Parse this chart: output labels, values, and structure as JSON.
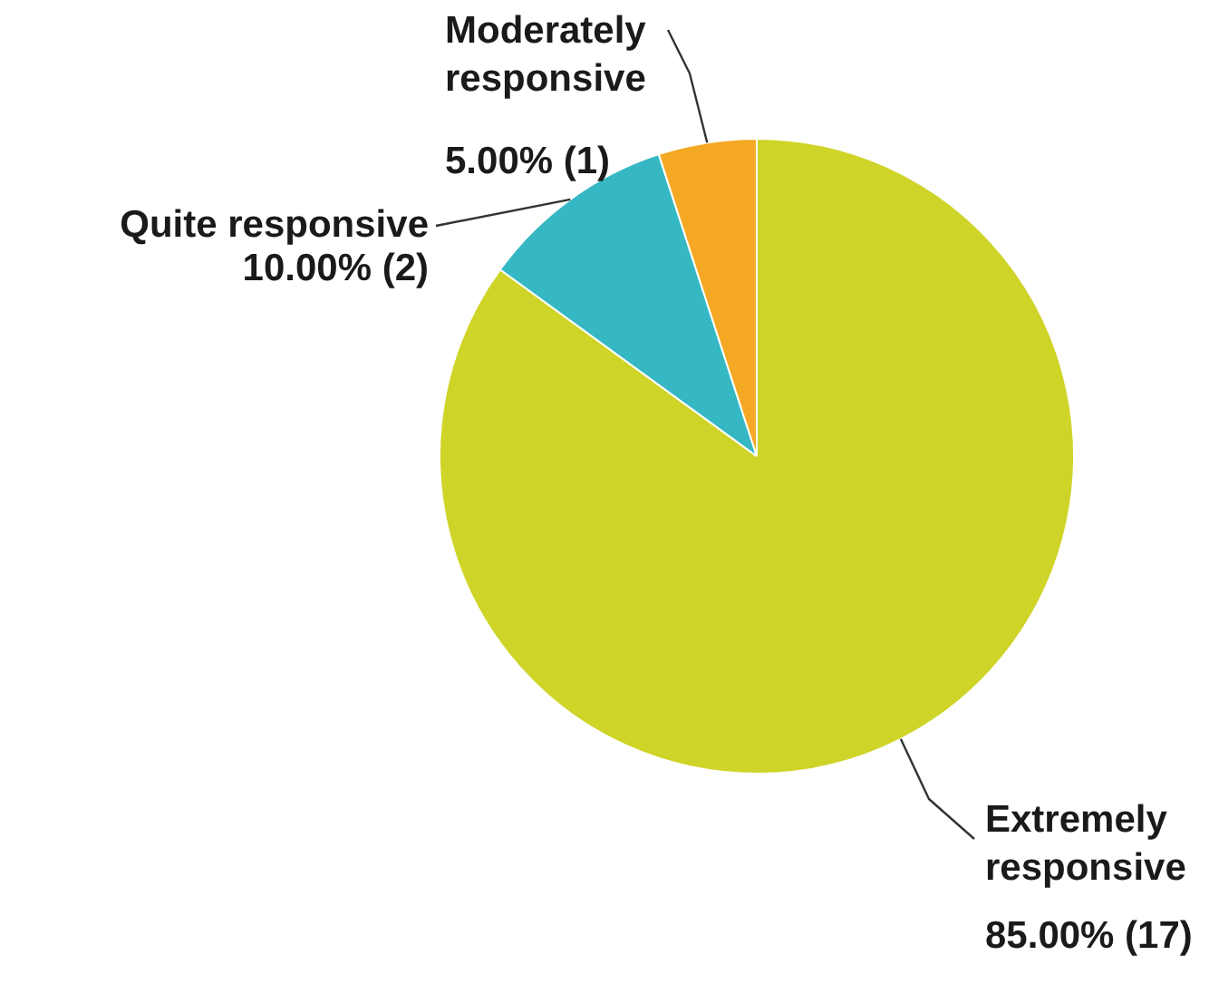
{
  "chart_data": {
    "type": "pie",
    "categories": [
      "Extremely responsive",
      "Quite responsive",
      "Moderately responsive"
    ],
    "values": [
      85,
      10,
      5
    ],
    "colors": [
      "#cfd428",
      "#35b8c4",
      "#f5a823"
    ],
    "value_labels": [
      "85.00% (17)",
      "10.00% (2)",
      "5.00% (1)"
    ]
  }
}
